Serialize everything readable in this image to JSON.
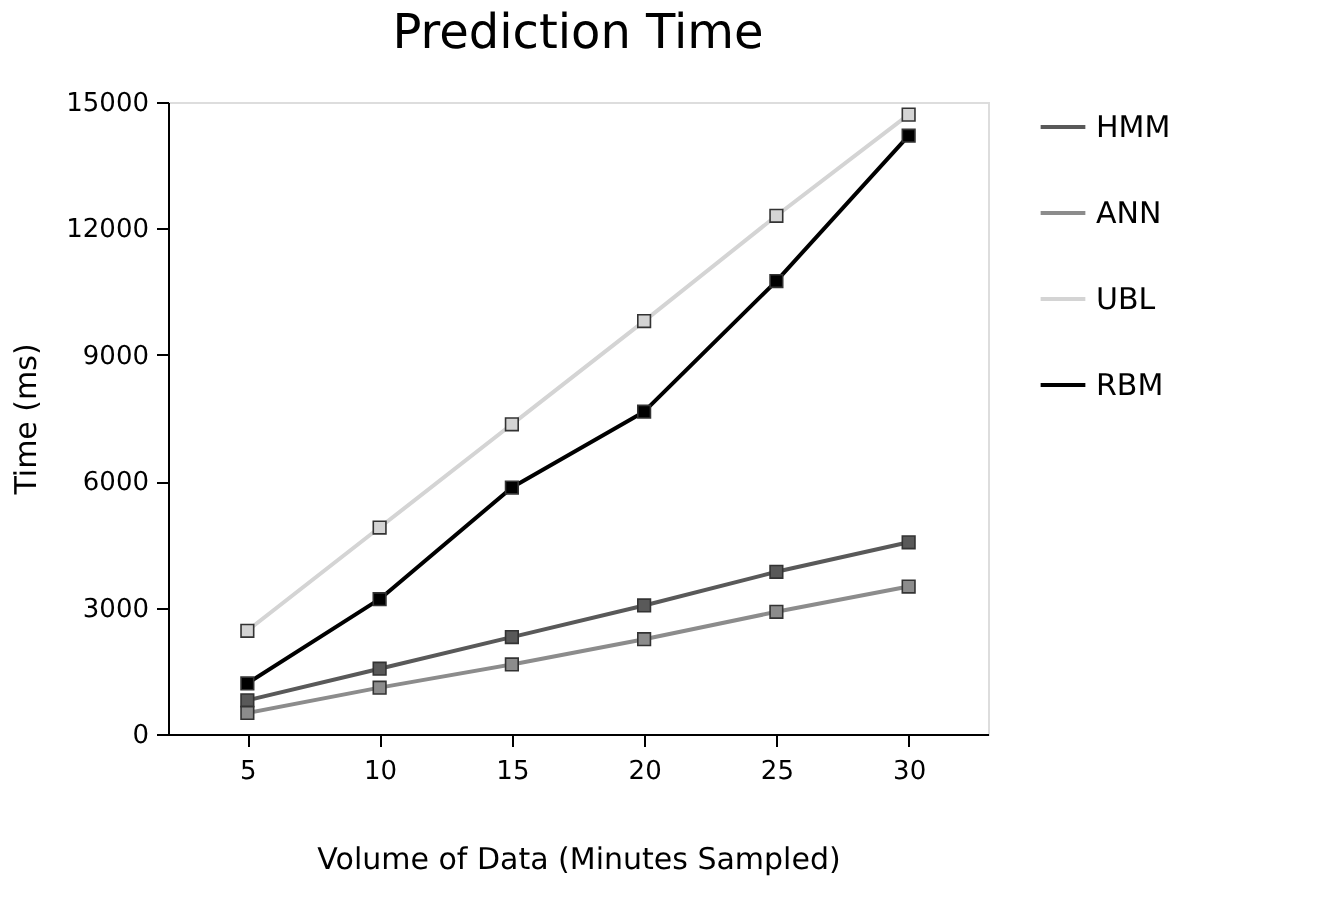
{
  "chart_data": {
    "type": "line",
    "title": "Prediction Time",
    "xlabel": "Volume of Data (Minutes Sampled)",
    "ylabel": "Time (ms)",
    "x": [
      5,
      10,
      15,
      20,
      25,
      30
    ],
    "series": [
      {
        "name": "HMM",
        "color": "#595959",
        "values": [
          800,
          1550,
          2300,
          3050,
          3850,
          4550
        ]
      },
      {
        "name": "ANN",
        "color": "#8c8c8c",
        "values": [
          500,
          1100,
          1650,
          2250,
          2900,
          3500
        ]
      },
      {
        "name": "UBL",
        "color": "#d4d4d4",
        "values": [
          2450,
          4900,
          7350,
          9800,
          12300,
          14700
        ]
      },
      {
        "name": "RBM",
        "color": "#000000",
        "values": [
          1200,
          3200,
          5850,
          7650,
          10750,
          14200
        ]
      }
    ],
    "xlim": [
      2,
      33
    ],
    "xticks": [
      5,
      10,
      15,
      20,
      25,
      30
    ],
    "ylim": [
      0,
      15000
    ],
    "yticks": [
      0,
      3000,
      6000,
      9000,
      12000,
      15000
    ],
    "grid": false,
    "legend": "right",
    "marker": "square",
    "line_style": "solid"
  }
}
